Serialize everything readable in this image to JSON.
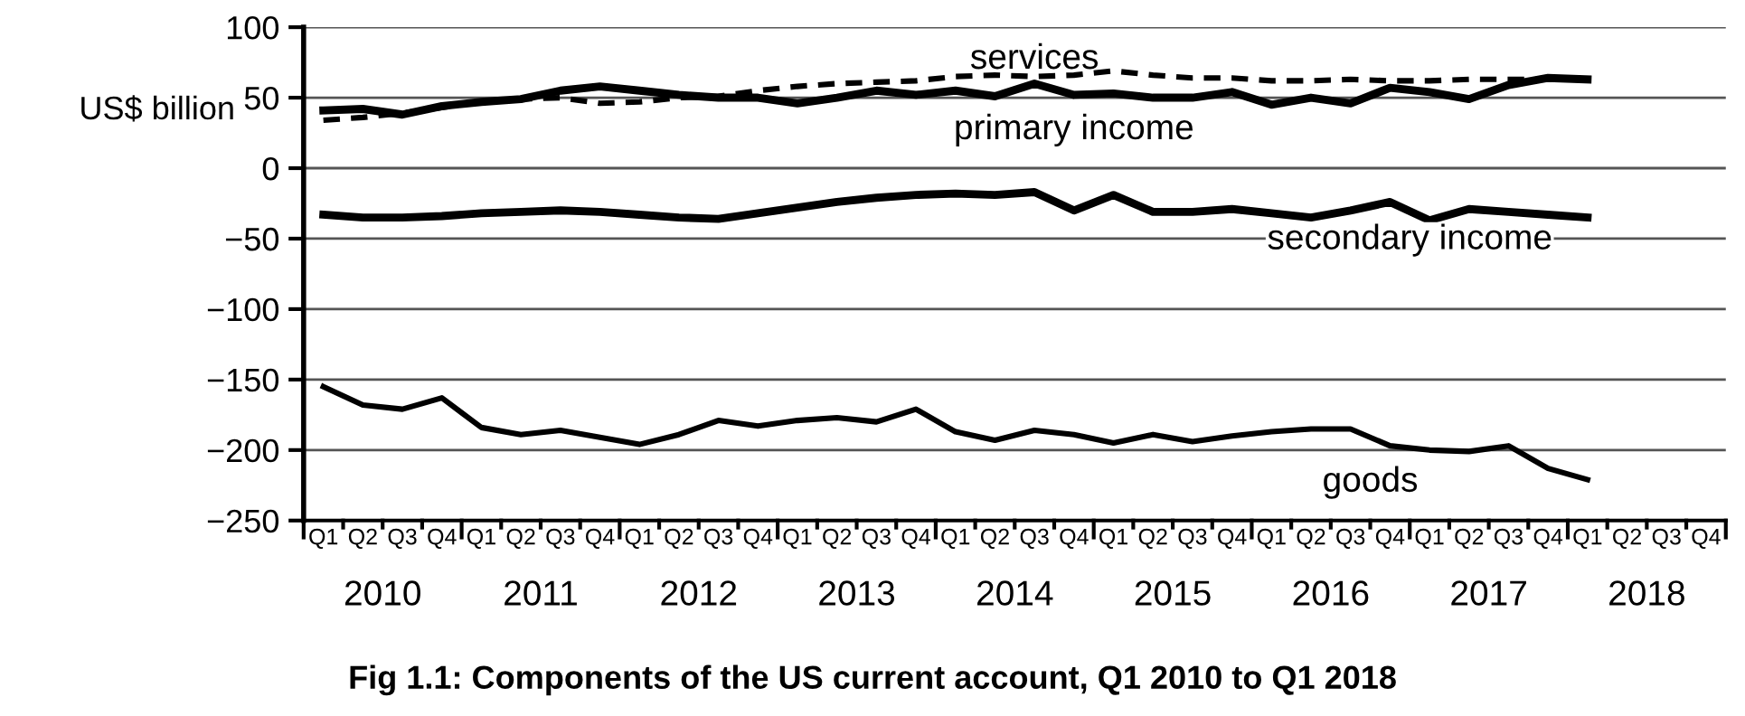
{
  "chart_data": {
    "type": "line",
    "title": "Fig 1.1: Components of the US current account, Q1 2010 to Q1 2018",
    "ylabel": "US$ billion",
    "categories": [
      "Q1",
      "Q2",
      "Q3",
      "Q4",
      "Q1",
      "Q2",
      "Q3",
      "Q4",
      "Q1",
      "Q2",
      "Q3",
      "Q4",
      "Q1",
      "Q2",
      "Q3",
      "Q4",
      "Q1",
      "Q2",
      "Q3",
      "Q4",
      "Q1",
      "Q2",
      "Q3",
      "Q4",
      "Q1",
      "Q2",
      "Q3",
      "Q4",
      "Q1",
      "Q2",
      "Q3",
      "Q4",
      "Q1",
      "Q2",
      "Q3",
      "Q4"
    ],
    "annotations": [
      "2010",
      "2011",
      "2012",
      "2013",
      "2014",
      "2015",
      "2016",
      "2017",
      "2018"
    ],
    "series": [
      {
        "name": "services",
        "color": "#000000",
        "line_style": "dashed",
        "values": [
          34,
          36,
          39,
          43,
          47,
          49,
          50,
          46,
          47,
          50,
          51,
          55,
          58,
          60,
          61,
          62,
          65,
          66,
          65,
          66,
          69,
          66,
          64,
          64,
          62,
          62,
          63,
          62,
          62,
          63,
          63,
          63,
          63,
          null,
          null,
          null
        ]
      },
      {
        "name": "primary income",
        "color": "#000000",
        "line_style": "solid",
        "values": [
          41,
          42,
          38,
          44,
          47,
          49,
          55,
          58,
          55,
          52,
          50,
          50,
          46,
          50,
          55,
          52,
          55,
          51,
          60,
          52,
          53,
          50,
          50,
          54,
          45,
          50,
          46,
          57,
          54,
          49,
          59,
          64,
          63,
          null,
          null,
          null
        ]
      },
      {
        "name": "secondary income",
        "color": "#000000",
        "line_style": "solid",
        "values": [
          -33,
          -35,
          -35,
          -34,
          -32,
          -31,
          -30,
          -31,
          -33,
          -35,
          -36,
          -32,
          -28,
          -24,
          -21,
          -19,
          -18,
          -19,
          -17,
          -30,
          -19,
          -31,
          -31,
          -29,
          -32,
          -35,
          -30,
          -24,
          -37,
          -29,
          -31,
          -33,
          -35,
          null,
          null,
          null
        ]
      },
      {
        "name": "goods",
        "color": "#000000",
        "line_style": "solid",
        "values": [
          -155,
          -168,
          -171,
          -163,
          -184,
          -189,
          -186,
          -191,
          -196,
          -189,
          -179,
          -183,
          -179,
          -177,
          -180,
          -171,
          -187,
          -193,
          -186,
          -189,
          -195,
          -189,
          -194,
          -190,
          -187,
          -185,
          -185,
          -197,
          -200,
          -201,
          -197,
          -213,
          -221,
          null,
          null,
          null
        ]
      }
    ],
    "ylim": [
      -250,
      100
    ],
    "yticks": [
      100,
      50,
      0,
      {
        "value": -50,
        "label": "−50"
      },
      {
        "value": -100,
        "label": "−100"
      },
      {
        "value": -150,
        "label": "−150"
      },
      {
        "value": -200,
        "label": "−200"
      },
      {
        "value": -250,
        "label": "−250"
      }
    ],
    "grid": "y",
    "marker": "none"
  }
}
